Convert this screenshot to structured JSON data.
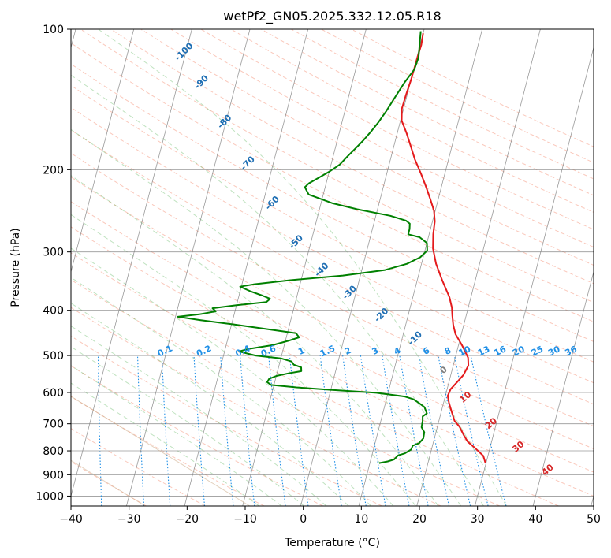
{
  "chart_data": {
    "type": "line",
    "title": "wetPf2_GN05.2025.332.12.05.R18",
    "xlabel": "Temperature (°C)",
    "ylabel": "Pressure (hPa)",
    "xlim": [
      -40,
      50
    ],
    "ylim": [
      1050,
      100
    ],
    "y_scale": "log",
    "grid": true,
    "x_ticks": [
      "−40",
      "−30",
      "−20",
      "−10",
      "0",
      "10",
      "20",
      "30",
      "40",
      "50"
    ],
    "x_tick_values": [
      -40,
      -30,
      -20,
      -10,
      0,
      10,
      20,
      30,
      40,
      50
    ],
    "y_ticks": [
      "1000",
      "900",
      "800",
      "700",
      "600",
      "500",
      "400",
      "300",
      "200",
      "100"
    ],
    "y_tick_values": [
      1000,
      900,
      800,
      700,
      600,
      500,
      400,
      300,
      200,
      100
    ],
    "series": [
      {
        "color": "#e41a1c",
        "description": "temperature profile",
        "points": [
          [
            29.9,
            850
          ],
          [
            29.2,
            820
          ],
          [
            27.5,
            790
          ],
          [
            25.9,
            765
          ],
          [
            24.9,
            740
          ],
          [
            23.8,
            710
          ],
          [
            22.7,
            690
          ],
          [
            21.8,
            660
          ],
          [
            20.9,
            630
          ],
          [
            20.4,
            610
          ],
          [
            20.6,
            590
          ],
          [
            21.4,
            570
          ],
          [
            22.2,
            550
          ],
          [
            22.6,
            525
          ],
          [
            22.2,
            505
          ],
          [
            20.6,
            475
          ],
          [
            19.0,
            450
          ],
          [
            18.2,
            430
          ],
          [
            17.6,
            410
          ],
          [
            17.2,
            395
          ],
          [
            16.3,
            375
          ],
          [
            14.3,
            345
          ],
          [
            12.5,
            318
          ],
          [
            11.3,
            295
          ],
          [
            10.7,
            275
          ],
          [
            10.4,
            258
          ],
          [
            9.8,
            245
          ],
          [
            8.7,
            232
          ],
          [
            7.4,
            218
          ],
          [
            5.9,
            204
          ],
          [
            4.2,
            190
          ],
          [
            2.9,
            178
          ],
          [
            1.6,
            167
          ],
          [
            0.2,
            157
          ],
          [
            -0.3,
            148
          ],
          [
            -0.2,
            138
          ],
          [
            0.0,
            128
          ],
          [
            0.1,
            115
          ],
          [
            0.2,
            108
          ],
          [
            0.0,
            102
          ]
        ]
      },
      {
        "color": "#008000",
        "description": "dewpoint profile",
        "points": [
          [
            11.6,
            850
          ],
          [
            13.0,
            843
          ],
          [
            14.0,
            835
          ],
          [
            14.5,
            818
          ],
          [
            15.6,
            810
          ],
          [
            16.5,
            795
          ],
          [
            16.6,
            780
          ],
          [
            17.6,
            770
          ],
          [
            18.1,
            752
          ],
          [
            18.0,
            730
          ],
          [
            17.3,
            712
          ],
          [
            17.2,
            690
          ],
          [
            17.0,
            675
          ],
          [
            17.6,
            665
          ],
          [
            16.9,
            645
          ],
          [
            15.8,
            632
          ],
          [
            14.6,
            620
          ],
          [
            13.0,
            612
          ],
          [
            8.0,
            601
          ],
          [
            0.0,
            592
          ],
          [
            -6.0,
            585
          ],
          [
            -10.5,
            578
          ],
          [
            -11.3,
            570
          ],
          [
            -11.1,
            561
          ],
          [
            -10.0,
            553
          ],
          [
            -8.0,
            546
          ],
          [
            -5.9,
            540
          ],
          [
            -6.1,
            530
          ],
          [
            -7.5,
            523
          ],
          [
            -8.0,
            515
          ],
          [
            -10.0,
            507
          ],
          [
            -14.5,
            500
          ],
          [
            -17.5,
            490
          ],
          [
            -16.0,
            484
          ],
          [
            -12.0,
            475
          ],
          [
            -9.5,
            465
          ],
          [
            -7.8,
            457
          ],
          [
            -8.5,
            448
          ],
          [
            -13.0,
            440
          ],
          [
            -19.5,
            429
          ],
          [
            -25.5,
            420
          ],
          [
            -29.6,
            413
          ],
          [
            -26.0,
            408
          ],
          [
            -23.3,
            402
          ],
          [
            -24.0,
            396
          ],
          [
            -20.0,
            390
          ],
          [
            -15.0,
            384
          ],
          [
            -14.5,
            378
          ],
          [
            -16.0,
            372
          ],
          [
            -18.3,
            364
          ],
          [
            -20.2,
            356
          ],
          [
            -18.0,
            352
          ],
          [
            -12.0,
            345
          ],
          [
            -3.0,
            337
          ],
          [
            4.0,
            328
          ],
          [
            7.5,
            318
          ],
          [
            9.5,
            308
          ],
          [
            10.4,
            298
          ],
          [
            10.0,
            287
          ],
          [
            8.5,
            279
          ],
          [
            6.4,
            275
          ],
          [
            6.4,
            268
          ],
          [
            6.2,
            261
          ],
          [
            5.4,
            257
          ],
          [
            2.5,
            251
          ],
          [
            -3.5,
            243
          ],
          [
            -8.0,
            236
          ],
          [
            -12.5,
            226
          ],
          [
            -13.5,
            218
          ],
          [
            -13.0,
            214
          ],
          [
            -11.5,
            208
          ],
          [
            -10.0,
            202
          ],
          [
            -8.5,
            195
          ],
          [
            -7.5,
            187
          ],
          [
            -6.5,
            180
          ],
          [
            -5.5,
            173
          ],
          [
            -4.5,
            165
          ],
          [
            -3.7,
            158
          ],
          [
            -2.9,
            150
          ],
          [
            -2.0,
            140
          ],
          [
            -1.0,
            130
          ],
          [
            0.1,
            122
          ],
          [
            0.3,
            115
          ],
          [
            -0.1,
            108
          ],
          [
            -0.5,
            101
          ]
        ]
      }
    ],
    "mixing_ratio_labels": [
      "0.1",
      "0.2",
      "0.4",
      "0.6",
      "1",
      "1.5",
      "2",
      "3",
      "4",
      "6",
      "8",
      "10",
      "13",
      "16",
      "20",
      "25",
      "30",
      "36"
    ],
    "mixing_ratio_values": [
      0.1,
      0.2,
      0.4,
      0.6,
      1,
      1.5,
      2,
      3,
      4,
      6,
      8,
      10,
      13,
      16,
      20,
      25,
      30,
      36
    ],
    "mixing_ratio_label_temps": [
      -22.7,
      -16.0,
      -9.3,
      -4.9,
      0.8,
      5.3,
      8.8,
      13.5,
      17.3,
      22.3,
      26.0,
      28.9,
      32.2,
      35.0,
      38.2,
      41.4,
      44.3,
      47.2
    ],
    "dry_adiabat_labels": [
      "10",
      "20",
      "30",
      "40"
    ],
    "dry_adiabat_label_temps": [
      29.0,
      34.6,
      40.3,
      46.4
    ],
    "dry_adiabat_label_pressures": [
      615,
      700,
      785,
      880
    ],
    "moist_adiabat_labels": [
      "-100",
      "-90",
      "-80",
      "-70",
      "-60",
      "-50",
      "-40",
      "-30",
      "-20",
      "-10"
    ],
    "moist_adiabat_label_temps": [
      -20.5,
      -17.5,
      -13.5,
      -9.5,
      -5.3,
      -1.2,
      3.2,
      8.0,
      13.5,
      19.3
    ],
    "moist_adiabat_label_pressures": [
      112,
      130,
      158,
      194,
      236,
      286,
      328,
      367,
      410,
      460
    ],
    "zero_label": "0",
    "zero_label_position": [
      24.6,
      538
    ]
  }
}
